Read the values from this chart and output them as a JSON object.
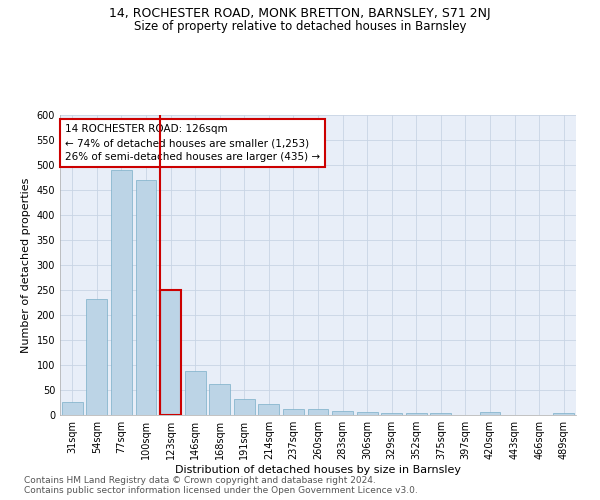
{
  "title1": "14, ROCHESTER ROAD, MONK BRETTON, BARNSLEY, S71 2NJ",
  "title2": "Size of property relative to detached houses in Barnsley",
  "xlabel": "Distribution of detached houses by size in Barnsley",
  "ylabel": "Number of detached properties",
  "categories": [
    "31sqm",
    "54sqm",
    "77sqm",
    "100sqm",
    "123sqm",
    "146sqm",
    "168sqm",
    "191sqm",
    "214sqm",
    "237sqm",
    "260sqm",
    "283sqm",
    "306sqm",
    "329sqm",
    "352sqm",
    "375sqm",
    "397sqm",
    "420sqm",
    "443sqm",
    "466sqm",
    "489sqm"
  ],
  "values": [
    27,
    233,
    490,
    470,
    250,
    88,
    63,
    33,
    23,
    13,
    12,
    9,
    6,
    5,
    4,
    5,
    1,
    6,
    1,
    1,
    5
  ],
  "bar_color": "#bcd4e6",
  "bar_edge_color": "#7aafc8",
  "highlight_index": 4,
  "highlight_color": "#cc0000",
  "annotation_text": "14 ROCHESTER ROAD: 126sqm\n← 74% of detached houses are smaller (1,253)\n26% of semi-detached houses are larger (435) →",
  "annotation_box_color": "#ffffff",
  "annotation_box_edge": "#cc0000",
  "ylim": [
    0,
    600
  ],
  "yticks": [
    0,
    50,
    100,
    150,
    200,
    250,
    300,
    350,
    400,
    450,
    500,
    550,
    600
  ],
  "grid_color": "#c8d4e4",
  "bg_color": "#e8eef8",
  "footnote": "Contains HM Land Registry data © Crown copyright and database right 2024.\nContains public sector information licensed under the Open Government Licence v3.0.",
  "title1_fontsize": 9,
  "title2_fontsize": 8.5,
  "xlabel_fontsize": 8,
  "ylabel_fontsize": 8,
  "tick_fontsize": 7,
  "annot_fontsize": 7.5,
  "footnote_fontsize": 6.5
}
